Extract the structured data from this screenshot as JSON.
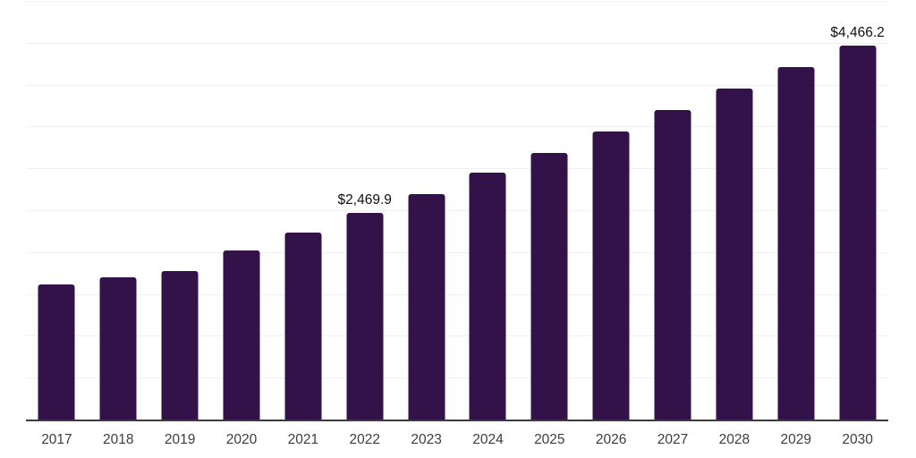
{
  "chart_data": {
    "type": "bar",
    "title": "",
    "xlabel": "",
    "ylabel": "",
    "categories": [
      "2017",
      "2018",
      "2019",
      "2020",
      "2021",
      "2022",
      "2023",
      "2024",
      "2025",
      "2026",
      "2027",
      "2028",
      "2029",
      "2030"
    ],
    "values": [
      1613,
      1697,
      1774,
      2019,
      2233,
      2469.9,
      2692,
      2949,
      3184,
      3440,
      3697,
      3953,
      4210,
      4466.2
    ],
    "data_labels": {
      "2022": "$2,469.9",
      "2030": "$4,466.2"
    },
    "ylim": [
      0,
      5000
    ],
    "gridline_step": 500,
    "grid": "horizontal-only",
    "legend": "none",
    "y_axis_ticks_visible": false,
    "colors": {
      "bar": "#331149",
      "gridline": "#f1f1f1",
      "axis_line": "#3c3c3c",
      "tick_label": "#3d3d3d",
      "data_label": "#111111",
      "background": "#ffffff"
    }
  }
}
